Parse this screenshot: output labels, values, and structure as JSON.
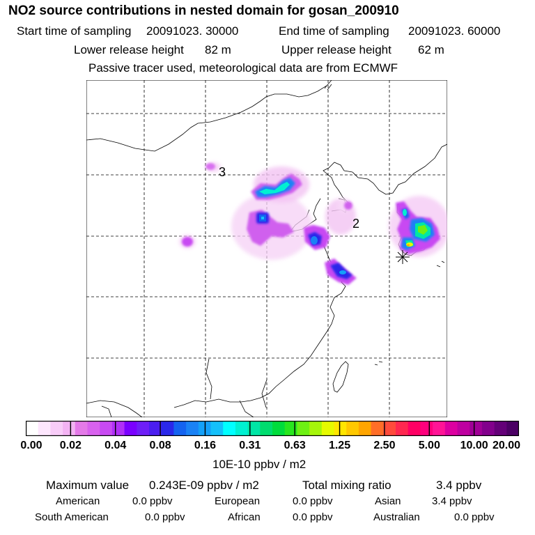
{
  "title": "NO2 source contributions in nested domain for gosan_200910",
  "header": {
    "start_label": "Start time of sampling",
    "start_value": "20091023. 30000",
    "end_label": "End time of sampling",
    "end_value": "20091023. 60000",
    "lower_label": "Lower release height",
    "lower_value": "82 m",
    "upper_label": "Upper release height",
    "upper_value": "62 m",
    "note": "Passive tracer used, meteorological data are from ECMWF"
  },
  "map": {
    "labels": [
      "3",
      "2"
    ],
    "receptor_marker": "asterisk-icon"
  },
  "colorbar": {
    "ticks": [
      "0.00",
      "0.02",
      "0.04",
      "0.08",
      "0.16",
      "0.31",
      "0.63",
      "1.25",
      "2.50",
      "5.00",
      "10.00",
      "20.00"
    ],
    "unit": "10E-10 ppbv / m2",
    "colors": [
      "#ffffff",
      "#fde6fd",
      "#f8ccf8",
      "#f3b3f3",
      "#e47ae8",
      "#d862ee",
      "#c84af2",
      "#b030f7",
      "#7a00ff",
      "#6e1ef7",
      "#4b1ef0",
      "#2a28ea",
      "#1463f0",
      "#1a82f5",
      "#14a0f8",
      "#14c0fa",
      "#00ffff",
      "#00f0d2",
      "#00e6a6",
      "#00dc6e",
      "#00dc3c",
      "#28e61e",
      "#6ef014",
      "#a6f50a",
      "#e6fa00",
      "#ffe600",
      "#ffc800",
      "#ffa500",
      "#ff6e28",
      "#ff4b3c",
      "#ff2850",
      "#ff0064",
      "#ff007d",
      "#ff1496",
      "#dc00a0",
      "#be00a0",
      "#a00096",
      "#82008c",
      "#640078",
      "#4b0064"
    ]
  },
  "stats": {
    "max_label": "Maximum value",
    "max_value": "0.243E-09 ppbv / m2",
    "total_label": "Total mixing ratio",
    "total_value": "3.4 ppbv",
    "american_label": "American",
    "american_value": "0.0 ppbv",
    "european_label": "European",
    "european_value": "0.0 ppbv",
    "asian_label": "Asian",
    "asian_value": "3.4 ppbv",
    "south_american_label": "South American",
    "south_american_value": "0.0 ppbv",
    "african_label": "African",
    "african_value": "0.0 ppbv",
    "australian_label": "Australian",
    "australian_value": "0.0 ppbv"
  }
}
